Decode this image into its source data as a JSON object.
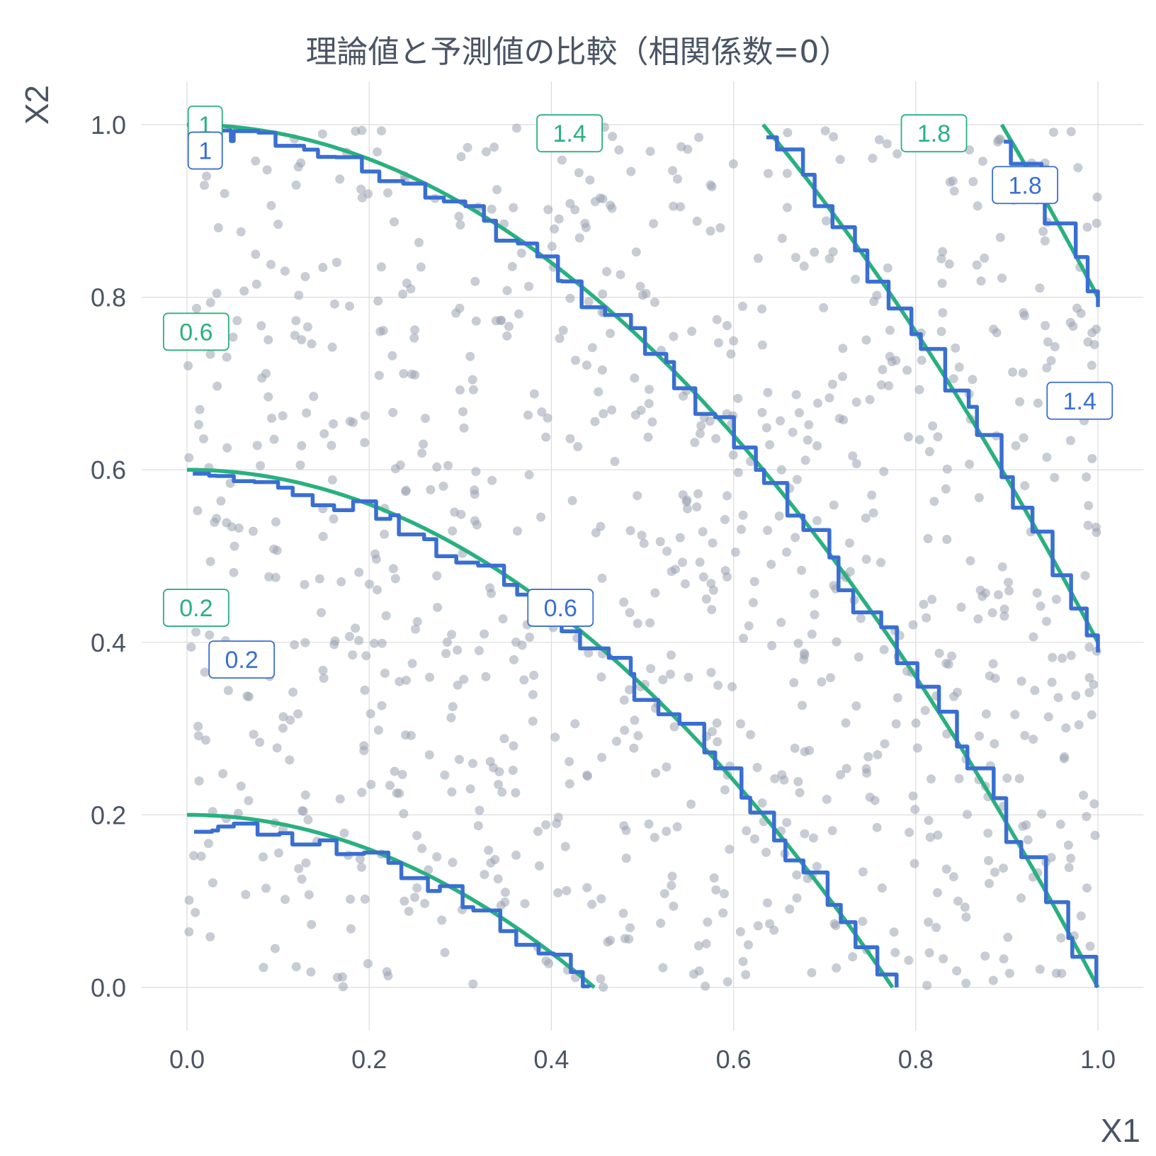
{
  "chart_data": {
    "type": "scatter",
    "title": "理論値と予測値の比較（相関係数=0）",
    "xlabel": "X1",
    "ylabel": "X2",
    "xlim": [
      -0.05,
      1.05
    ],
    "ylim": [
      -0.05,
      1.05
    ],
    "x_ticks": [
      "0.0",
      "0.2",
      "0.4",
      "0.6",
      "0.8",
      "1.0"
    ],
    "y_ticks": [
      "0.0",
      "0.2",
      "0.4",
      "0.6",
      "0.8",
      "1.0"
    ],
    "grid": true,
    "legend": "none",
    "points": {
      "description_only": false,
      "count": 1000,
      "color": "#9aa3b1"
    },
    "contours": [
      {
        "series": "theoretical",
        "color": "#2ab07f",
        "levels": [
          0.2,
          0.6,
          1,
          1.4,
          1.8
        ]
      },
      {
        "series": "predicted",
        "color": "#3a6fd2",
        "levels": [
          0.2,
          0.6,
          1,
          1.4,
          1.8
        ]
      }
    ],
    "contour_labels": [
      {
        "series": "theoretical",
        "text": "1",
        "x": 0.02,
        "y": 1.0
      },
      {
        "series": "theoretical",
        "text": "1.4",
        "x": 0.42,
        "y": 0.99
      },
      {
        "series": "theoretical",
        "text": "1.8",
        "x": 0.82,
        "y": 0.99
      },
      {
        "series": "theoretical",
        "text": "0.6",
        "x": 0.01,
        "y": 0.76
      },
      {
        "series": "theoretical",
        "text": "0.2",
        "x": 0.01,
        "y": 0.44
      },
      {
        "series": "predicted",
        "text": "1",
        "x": 0.02,
        "y": 0.97
      },
      {
        "series": "predicted",
        "text": "1.8",
        "x": 0.92,
        "y": 0.93
      },
      {
        "series": "predicted",
        "text": "1.4",
        "x": 0.98,
        "y": 0.68
      },
      {
        "series": "predicted",
        "text": "0.6",
        "x": 0.41,
        "y": 0.44
      },
      {
        "series": "predicted",
        "text": "0.2",
        "x": 0.06,
        "y": 0.38
      }
    ]
  }
}
